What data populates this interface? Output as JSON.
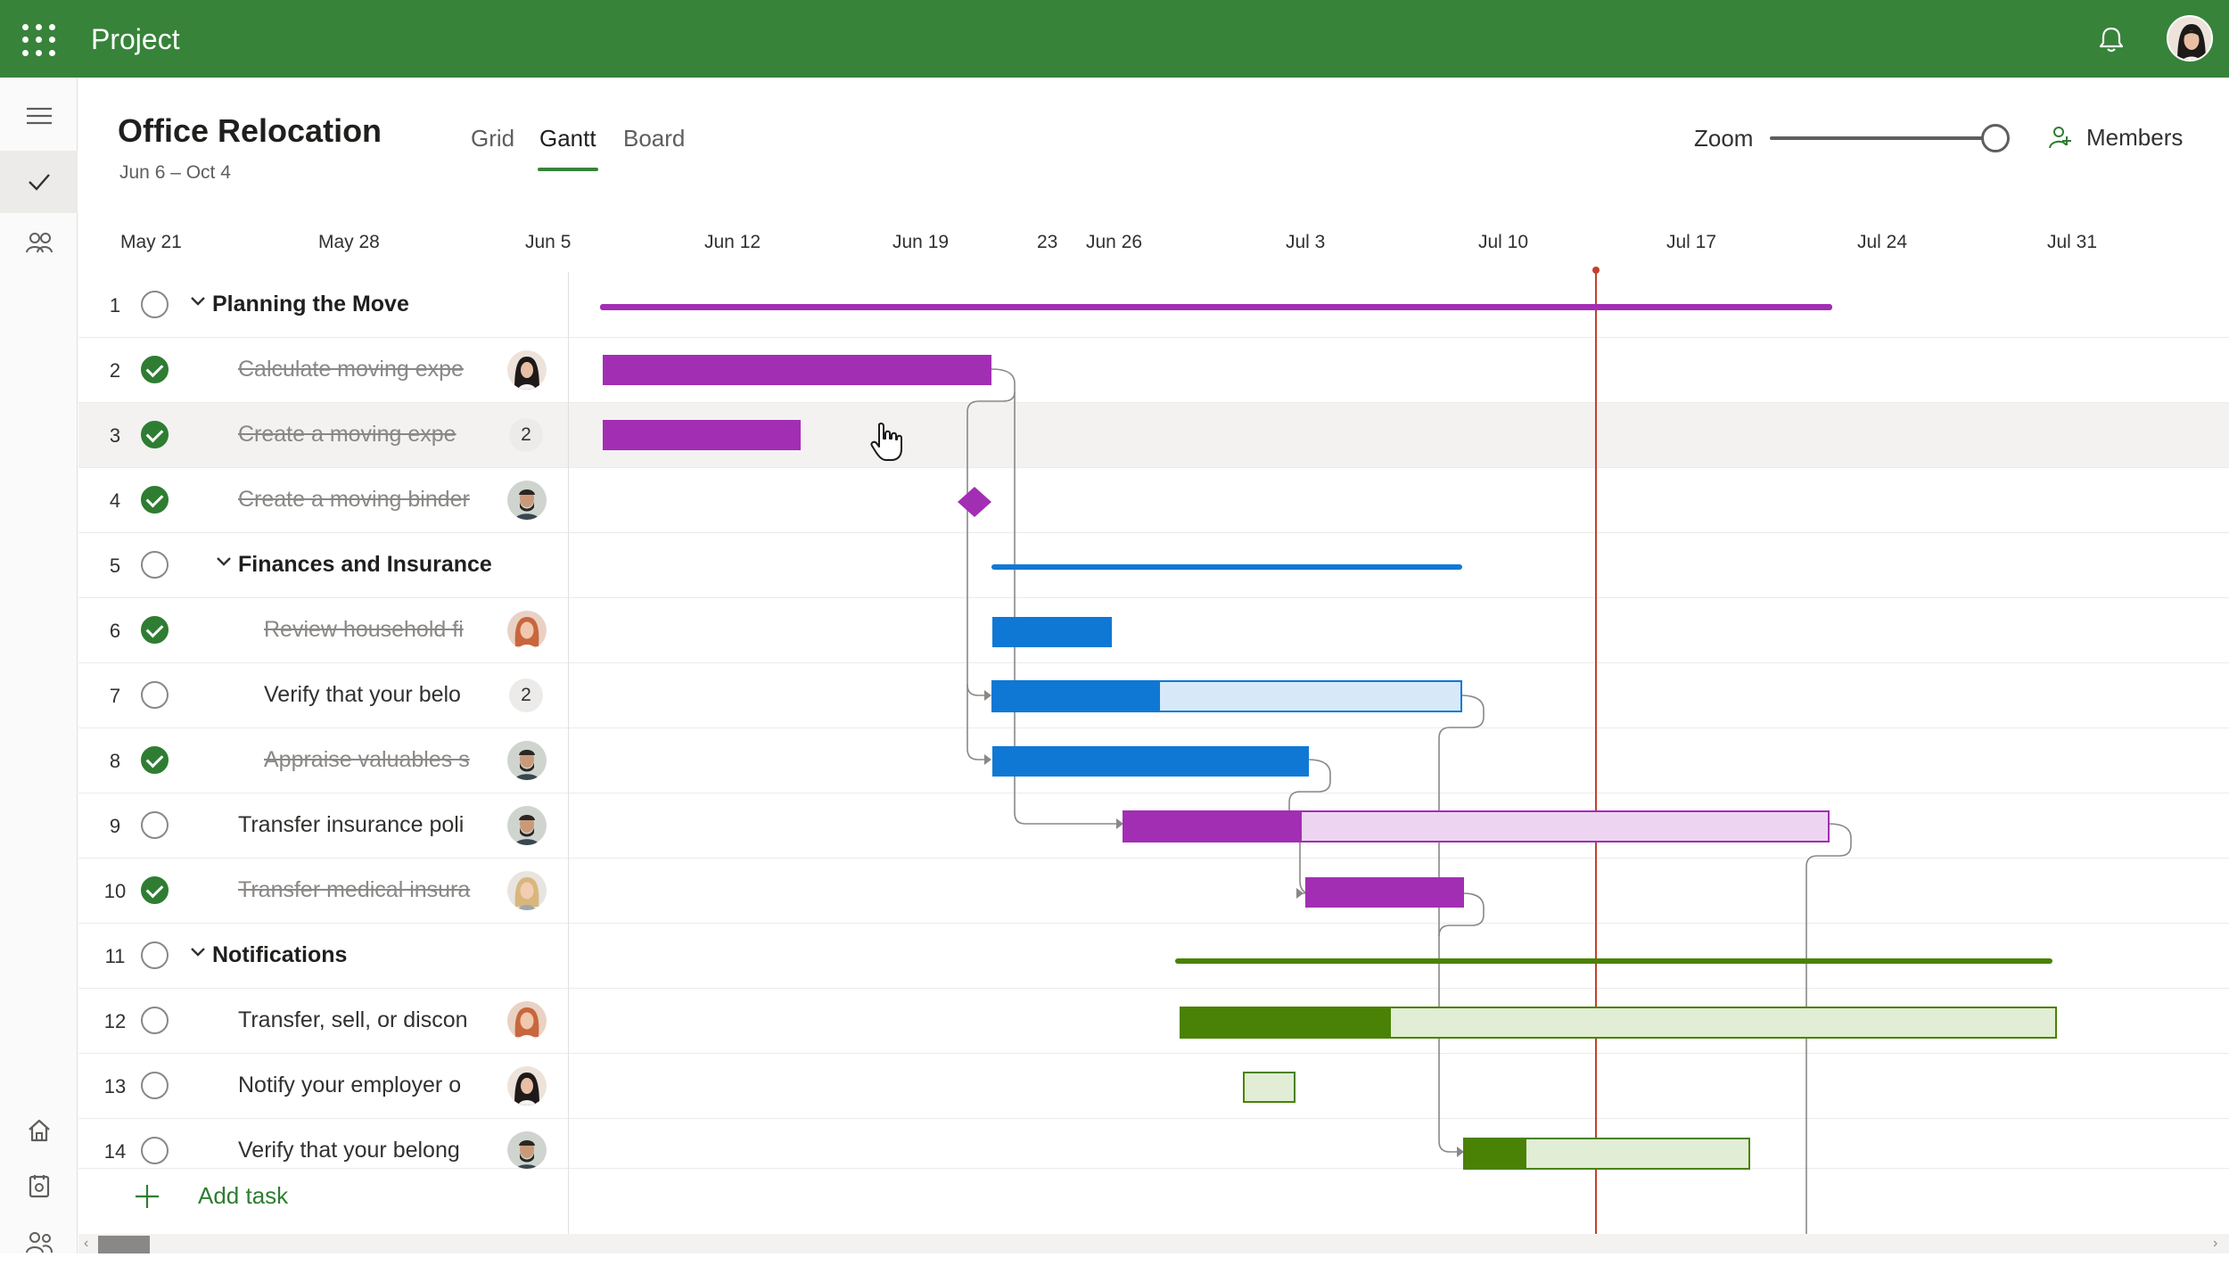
{
  "app": {
    "title": "Project"
  },
  "plan": {
    "title": "Office Relocation",
    "dates": "Jun 6 – Oct 4"
  },
  "tabs": [
    {
      "label": "Grid"
    },
    {
      "label": "Gantt",
      "active": true
    },
    {
      "label": "Board"
    }
  ],
  "zoom": {
    "label": "Zoom",
    "level": 0.93
  },
  "members": {
    "label": "Members"
  },
  "timeline": {
    "dates": [
      "May  21",
      "May  28",
      "Jun  5",
      "Jun  12",
      "Jun  19",
      "23",
      "Jun  26",
      "Jul  3",
      "Jul  10",
      "Jul  17",
      "Jul  24",
      "Jul  31"
    ]
  },
  "tasks": [
    {
      "num": "1",
      "name": "Planning the Move",
      "summary": true,
      "done": false,
      "level": 0
    },
    {
      "num": "2",
      "name": "Calculate moving expe",
      "done": true,
      "level": 1,
      "assignee": "avatar-woman-dark-hair"
    },
    {
      "num": "3",
      "name": "Create a moving expe",
      "done": true,
      "level": 1,
      "count": "2"
    },
    {
      "num": "4",
      "name": "Create a moving binder",
      "done": true,
      "level": 1,
      "assignee": "avatar-man-beard"
    },
    {
      "num": "5",
      "name": "Finances and Insurance",
      "summary": true,
      "done": false,
      "level": 1
    },
    {
      "num": "6",
      "name": "Review household fi",
      "done": true,
      "level": 2,
      "assignee": "avatar-woman-red-hair"
    },
    {
      "num": "7",
      "name": "Verify that your belo",
      "done": false,
      "level": 2,
      "count": "2"
    },
    {
      "num": "8",
      "name": "Appraise valuables s",
      "done": true,
      "level": 2,
      "assignee": "avatar-man-beard"
    },
    {
      "num": "9",
      "name": "Transfer insurance poli",
      "done": false,
      "level": 1,
      "assignee": "avatar-man-beard"
    },
    {
      "num": "10",
      "name": "Transfer medical insura",
      "done": true,
      "level": 1,
      "assignee": "avatar-woman-blonde"
    },
    {
      "num": "11",
      "name": "Notifications",
      "summary": true,
      "done": false,
      "level": 0
    },
    {
      "num": "12",
      "name": "Transfer, sell, or discon",
      "done": false,
      "level": 1,
      "assignee": "avatar-woman-red-hair"
    },
    {
      "num": "13",
      "name": "Notify your employer o",
      "done": false,
      "level": 1,
      "assignee": "avatar-woman-dark-hair"
    },
    {
      "num": "14",
      "name": "Verify that your belong",
      "done": false,
      "level": 1,
      "assignee": "avatar-man-beard"
    }
  ],
  "add_task": {
    "label": "Add task"
  },
  "colors": {
    "brand": "#37833a",
    "purple": "#a22eb3",
    "purple_light": "#edd5f1",
    "blue": "#0f78d4",
    "blue_light": "#d7e9f8",
    "green": "#498205",
    "green_light": "#e1edd4",
    "today_line": "#c4412a"
  },
  "icons": {
    "menu": "waffle-icon",
    "notifications": "bell-icon",
    "nav_collapse": "hamburger-icon",
    "nav_tasks": "checkmark-icon",
    "nav_people": "people-icon",
    "nav_home": "home-icon",
    "nav_hub": "hub-icon",
    "nav_team": "team-icon",
    "members": "members-icon",
    "add": "plus-icon"
  }
}
